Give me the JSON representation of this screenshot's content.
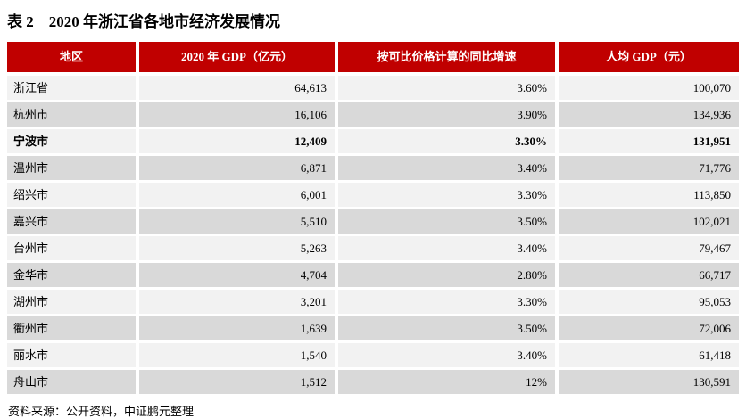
{
  "title": "表 2　2020 年浙江省各地市经济发展情况",
  "table": {
    "headers": [
      "地区",
      "2020 年 GDP（亿元）",
      "按可比价格计算的同比增速",
      "人均 GDP（元）"
    ],
    "rows": [
      {
        "region": "浙江省",
        "gdp": "64,613",
        "growth": "3.60%",
        "per_capita_gdp": "100,070",
        "bold": false
      },
      {
        "region": "杭州市",
        "gdp": "16,106",
        "growth": "3.90%",
        "per_capita_gdp": "134,936",
        "bold": false
      },
      {
        "region": "宁波市",
        "gdp": "12,409",
        "growth": "3.30%",
        "per_capita_gdp": "131,951",
        "bold": true
      },
      {
        "region": "温州市",
        "gdp": "6,871",
        "growth": "3.40%",
        "per_capita_gdp": "71,776",
        "bold": false
      },
      {
        "region": "绍兴市",
        "gdp": "6,001",
        "growth": "3.30%",
        "per_capita_gdp": "113,850",
        "bold": false
      },
      {
        "region": "嘉兴市",
        "gdp": "5,510",
        "growth": "3.50%",
        "per_capita_gdp": "102,021",
        "bold": false
      },
      {
        "region": "台州市",
        "gdp": "5,263",
        "growth": "3.40%",
        "per_capita_gdp": "79,467",
        "bold": false
      },
      {
        "region": "金华市",
        "gdp": "4,704",
        "growth": "2.80%",
        "per_capita_gdp": "66,717",
        "bold": false
      },
      {
        "region": "湖州市",
        "gdp": "3,201",
        "growth": "3.30%",
        "per_capita_gdp": "95,053",
        "bold": false
      },
      {
        "region": "衢州市",
        "gdp": "1,639",
        "growth": "3.50%",
        "per_capita_gdp": "72,006",
        "bold": false
      },
      {
        "region": "丽水市",
        "gdp": "1,540",
        "growth": "3.40%",
        "per_capita_gdp": "61,418",
        "bold": false
      },
      {
        "region": "舟山市",
        "gdp": "1,512",
        "growth": "12%",
        "per_capita_gdp": "130,591",
        "bold": false
      }
    ]
  },
  "source_note": "资料来源：公开资料，中证鹏元整理",
  "colors": {
    "header_bg": "#C00000",
    "header_text": "#FFFFFF",
    "row_light_bg": "#F2F2F2",
    "row_dark_bg": "#D9D9D9",
    "text": "#000000"
  }
}
